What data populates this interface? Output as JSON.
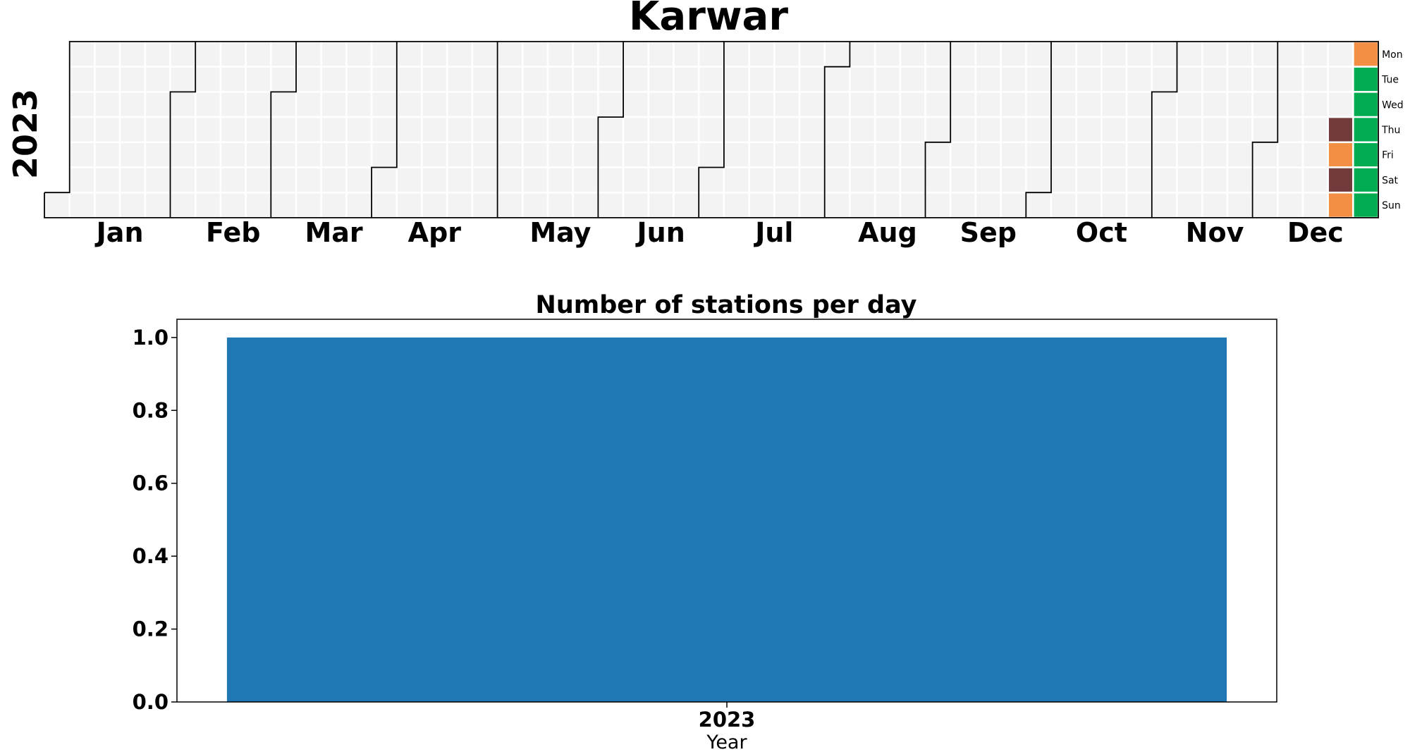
{
  "title": "Karwar",
  "calendar": {
    "year_label": "2023",
    "months": [
      "Jan",
      "Feb",
      "Mar",
      "Apr",
      "May",
      "Jun",
      "Jul",
      "Aug",
      "Sep",
      "Oct",
      "Nov",
      "Dec"
    ],
    "weekdays": [
      "Mon",
      "Tue",
      "Wed",
      "Thu",
      "Fri",
      "Sat",
      "Sun"
    ],
    "empty_color": "#f3f3f3",
    "colored_days": [
      {
        "date": "2023-12-21",
        "color": "#733a3c"
      },
      {
        "date": "2023-12-22",
        "color": "#f28f45"
      },
      {
        "date": "2023-12-23",
        "color": "#733a3c"
      },
      {
        "date": "2023-12-24",
        "color": "#f28f45"
      },
      {
        "date": "2023-12-25",
        "color": "#f28f45"
      },
      {
        "date": "2023-12-26",
        "color": "#00ac4f"
      },
      {
        "date": "2023-12-27",
        "color": "#00ac4f"
      },
      {
        "date": "2023-12-28",
        "color": "#00ac4f"
      },
      {
        "date": "2023-12-29",
        "color": "#00ac4f"
      },
      {
        "date": "2023-12-30",
        "color": "#00ac4f"
      },
      {
        "date": "2023-12-31",
        "color": "#00ac4f"
      }
    ]
  },
  "chart_data": {
    "type": "bar",
    "title": "Number of stations per day",
    "categories": [
      "2023"
    ],
    "values": [
      1
    ],
    "xlabel": "Year",
    "ylabel": "",
    "ylim": [
      0,
      1.05
    ],
    "yticks": [
      "0.0",
      "0.2",
      "0.4",
      "0.6",
      "0.8",
      "1.0"
    ],
    "bar_color": "#1f77b4",
    "grid": false
  }
}
